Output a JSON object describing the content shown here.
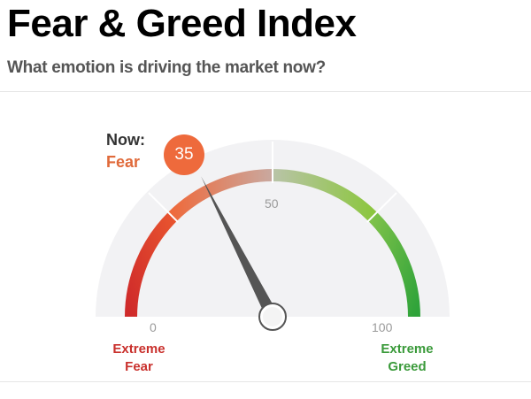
{
  "header": {
    "title": "Fear & Greed Index",
    "subtitle": "What emotion is driving the market now?"
  },
  "gauge": {
    "now_label": "Now:",
    "rating": "Fear",
    "value": "35",
    "value_number": 35,
    "min": 0,
    "max": 100,
    "ticks": {
      "low": "0",
      "mid": "50",
      "high": "100"
    },
    "low_label": {
      "line1": "Extreme",
      "line2": "Fear"
    },
    "high_label": {
      "line1": "Extreme",
      "line2": "Greed"
    },
    "colors": {
      "extreme_fear": "#d0282a",
      "fear": "#ee6a3c",
      "neutral": "#b8b8b8",
      "greed": "#8cc63f",
      "extreme_greed": "#2fa33a",
      "needle": "#555555",
      "badge": "#ee6a3c"
    }
  }
}
